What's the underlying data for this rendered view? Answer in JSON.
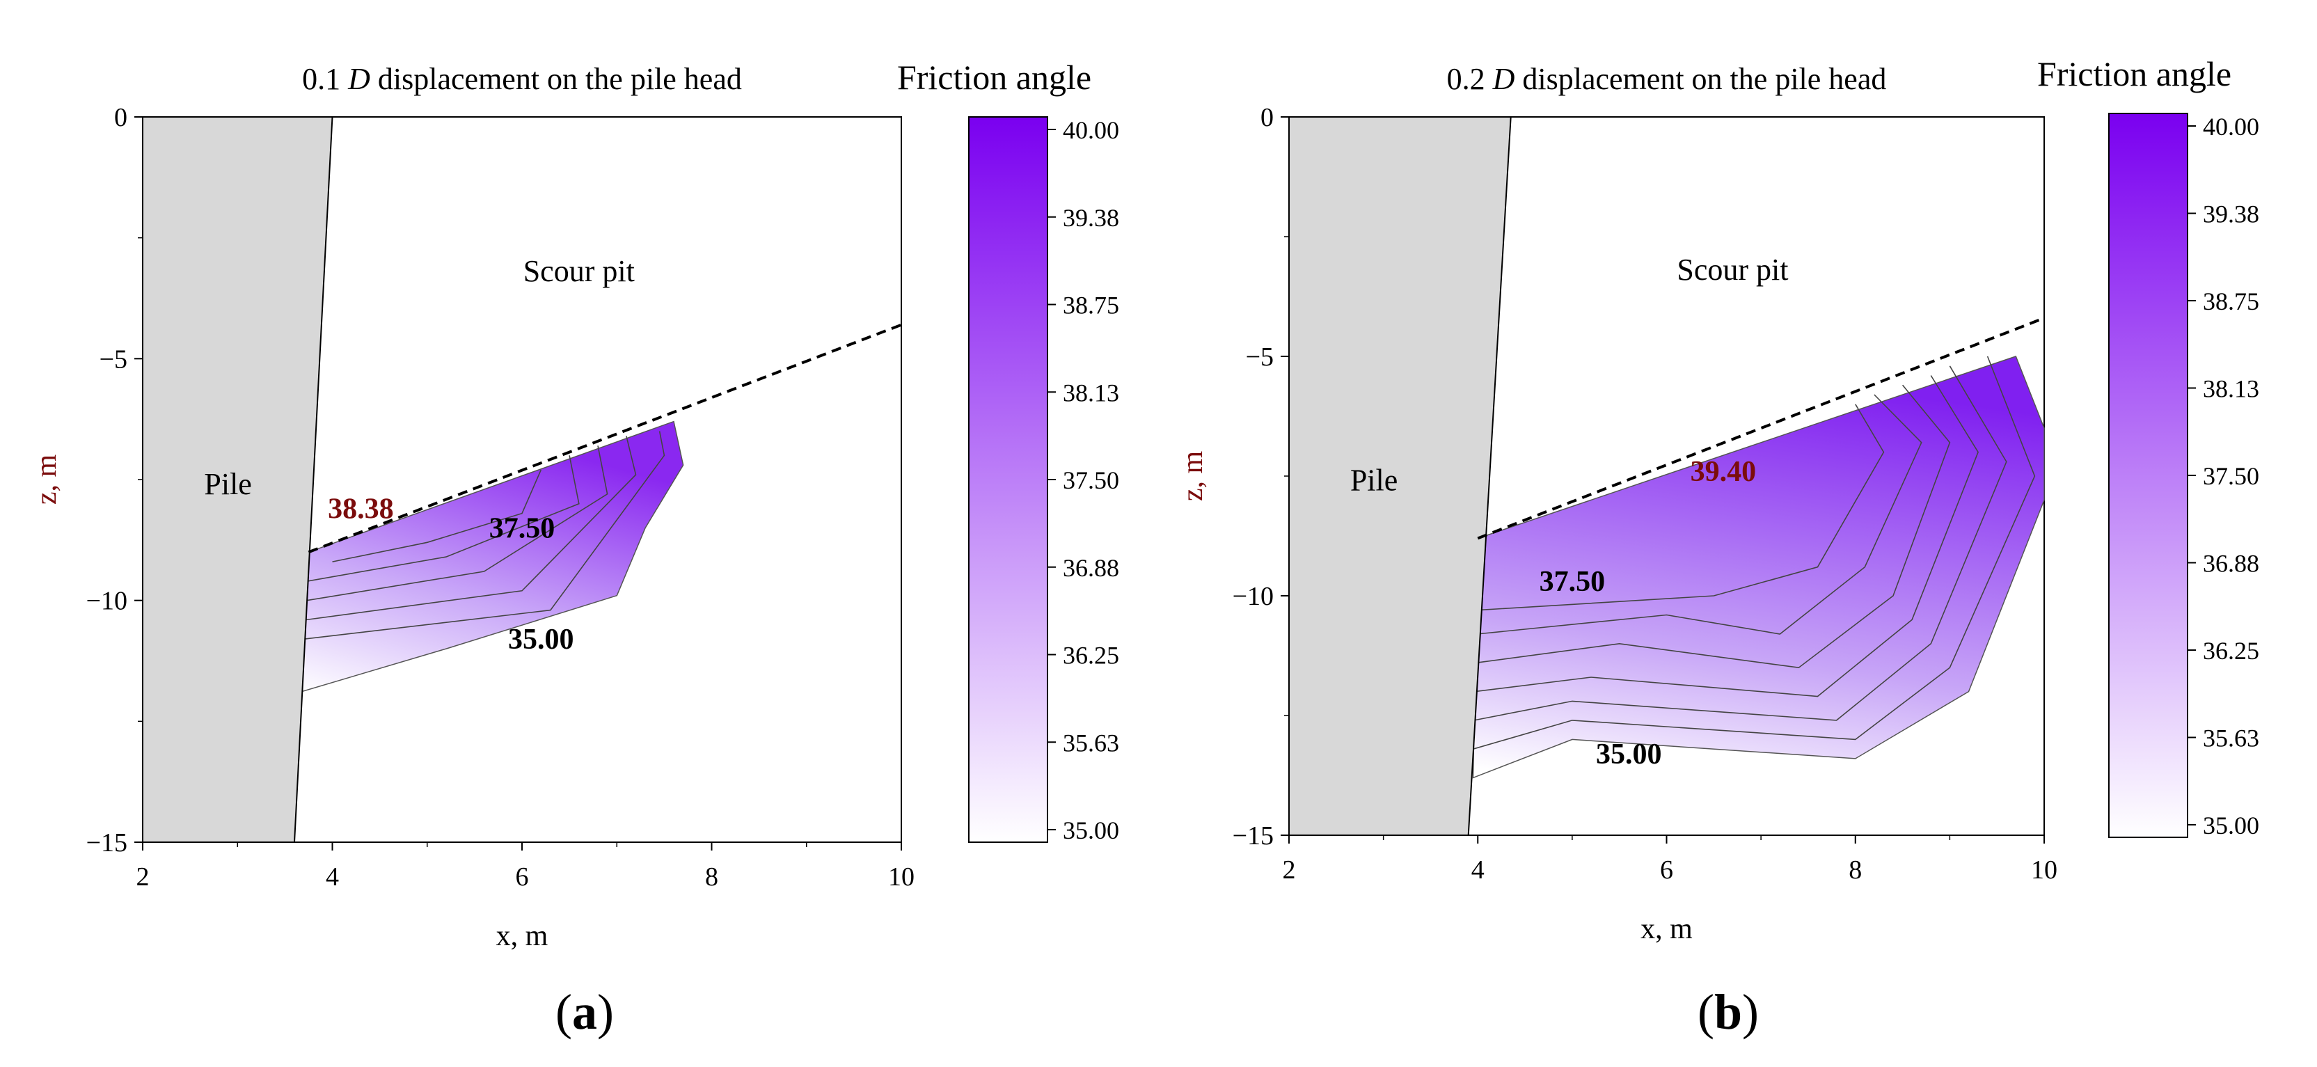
{
  "figure": {
    "colors": {
      "contour_max": "#7a00f0",
      "contour_min": "#ffffff",
      "pile_fill": "#d8d8d8",
      "label_red": "#7b0c0c",
      "axis": "#000000"
    }
  },
  "chart_data": [
    {
      "type": "contour",
      "panel_label": "(a)",
      "title_prefix": "0.1 ",
      "title_italic": "D",
      "title_suffix": " displacement on the pile head",
      "colorbar_title": "Friction angle",
      "xlabel": "x, m",
      "ylabel": "z, m",
      "xlim": [
        2,
        10
      ],
      "ylim": [
        -15,
        0
      ],
      "x_ticks": [
        "2",
        "4",
        "6",
        "8",
        "10"
      ],
      "y_ticks": [
        "0",
        "−5",
        "−10",
        "−15"
      ],
      "colorbar_range": [
        35.0,
        40.0
      ],
      "colorbar_ticks": [
        "40.00",
        "39.38",
        "38.75",
        "38.13",
        "37.50",
        "36.88",
        "36.25",
        "35.63",
        "35.00"
      ],
      "pile_label": "Pile",
      "pit_label": "Scour pit",
      "pile_outline": [
        [
          2,
          0
        ],
        [
          4.0,
          0
        ],
        [
          3.6,
          -15
        ],
        [
          2,
          -15
        ]
      ],
      "pit_line": [
        [
          3.75,
          -9.0
        ],
        [
          10,
          -4.3
        ]
      ],
      "outer_boundary": [
        [
          3.75,
          -9.0
        ],
        [
          7.6,
          -6.3
        ],
        [
          7.7,
          -7.2
        ],
        [
          7.3,
          -8.5
        ],
        [
          7.0,
          -9.9
        ],
        [
          5.2,
          -11.0
        ],
        [
          3.65,
          -11.9
        ]
      ],
      "contour_levels": [
        {
          "level": 35.6,
          "points": [
            [
              3.7,
              -10.8
            ],
            [
              6.3,
              -10.2
            ],
            [
              7.5,
              -7.0
            ],
            [
              7.45,
              -6.5
            ]
          ]
        },
        {
          "level": 36.2,
          "points": [
            [
              3.72,
              -10.4
            ],
            [
              6.0,
              -9.8
            ],
            [
              7.2,
              -7.4
            ],
            [
              7.1,
              -6.6
            ]
          ]
        },
        {
          "level": 36.9,
          "points": [
            [
              3.73,
              -10.0
            ],
            [
              5.6,
              -9.4
            ],
            [
              6.9,
              -7.8
            ],
            [
              6.8,
              -6.8
            ]
          ]
        },
        {
          "level": 37.5,
          "points": [
            [
              3.74,
              -9.6
            ],
            [
              5.2,
              -9.1
            ],
            [
              6.6,
              -8.0
            ],
            [
              6.5,
              -7.0
            ]
          ]
        },
        {
          "level": 38.1,
          "points": [
            [
              4.0,
              -9.2
            ],
            [
              5.0,
              -8.8
            ],
            [
              6.0,
              -8.2
            ],
            [
              6.2,
              -7.3
            ]
          ]
        }
      ],
      "annotations": [
        {
          "text": "38.38",
          "x": 4.3,
          "y": -8.3,
          "color": "red"
        },
        {
          "text": "37.50",
          "x": 6.0,
          "y": -8.7,
          "color": "black"
        },
        {
          "text": "35.00",
          "x": 6.2,
          "y": -11.0,
          "color": "black"
        }
      ]
    },
    {
      "type": "contour",
      "panel_label": "(b)",
      "title_prefix": "0.2 ",
      "title_italic": "D",
      "title_suffix": " displacement on the pile head",
      "colorbar_title": "Friction angle",
      "xlabel": "x, m",
      "ylabel": "z, m",
      "xlim": [
        2,
        10
      ],
      "ylim": [
        -15,
        0
      ],
      "x_ticks": [
        "2",
        "4",
        "6",
        "8",
        "10"
      ],
      "y_ticks": [
        "0",
        "−5",
        "−10",
        "−15"
      ],
      "colorbar_range": [
        35.0,
        40.0
      ],
      "colorbar_ticks": [
        "40.00",
        "39.38",
        "38.75",
        "38.13",
        "37.50",
        "36.88",
        "36.25",
        "35.63",
        "35.00"
      ],
      "pile_label": "Pile",
      "pit_label": "Scour pit",
      "pile_outline": [
        [
          2,
          0
        ],
        [
          4.35,
          0
        ],
        [
          3.9,
          -15
        ],
        [
          2,
          -15
        ]
      ],
      "pit_line": [
        [
          4.0,
          -8.8
        ],
        [
          10,
          -4.2
        ]
      ],
      "outer_boundary": [
        [
          4.0,
          -8.8
        ],
        [
          9.7,
          -5.0
        ],
        [
          10.0,
          -6.5
        ],
        [
          10.0,
          -8.0
        ],
        [
          9.2,
          -12.0
        ],
        [
          8.0,
          -13.4
        ],
        [
          5.0,
          -13.0
        ],
        [
          3.95,
          -13.8
        ]
      ],
      "contour_levels": [
        {
          "level": 35.6,
          "points": [
            [
              3.95,
              -13.2
            ],
            [
              5.0,
              -12.6
            ],
            [
              8.0,
              -13.0
            ],
            [
              9.0,
              -11.5
            ],
            [
              9.9,
              -7.5
            ],
            [
              9.4,
              -5.0
            ]
          ]
        },
        {
          "level": 36.2,
          "points": [
            [
              3.96,
              -12.6
            ],
            [
              5.0,
              -12.2
            ],
            [
              7.8,
              -12.6
            ],
            [
              8.8,
              -11.0
            ],
            [
              9.6,
              -7.2
            ],
            [
              9.0,
              -5.2
            ]
          ]
        },
        {
          "level": 36.9,
          "points": [
            [
              3.97,
              -12.0
            ],
            [
              5.2,
              -11.7
            ],
            [
              7.6,
              -12.1
            ],
            [
              8.6,
              -10.5
            ],
            [
              9.3,
              -7.0
            ],
            [
              8.8,
              -5.4
            ]
          ]
        },
        {
          "level": 37.5,
          "points": [
            [
              3.98,
              -11.4
            ],
            [
              5.5,
              -11.0
            ],
            [
              7.4,
              -11.5
            ],
            [
              8.4,
              -10.0
            ],
            [
              9.0,
              -6.8
            ],
            [
              8.5,
              -5.6
            ]
          ]
        },
        {
          "level": 38.1,
          "points": [
            [
              3.99,
              -10.8
            ],
            [
              6.0,
              -10.4
            ],
            [
              7.2,
              -10.8
            ],
            [
              8.1,
              -9.4
            ],
            [
              8.7,
              -6.8
            ],
            [
              8.2,
              -5.8
            ]
          ]
        },
        {
          "level": 38.8,
          "points": [
            [
              4.0,
              -10.3
            ],
            [
              6.5,
              -10.0
            ],
            [
              7.6,
              -9.4
            ],
            [
              8.3,
              -7.0
            ],
            [
              8.0,
              -6.0
            ]
          ]
        }
      ],
      "annotations": [
        {
          "text": "39.40",
          "x": 6.6,
          "y": -7.6,
          "color": "red"
        },
        {
          "text": "37.50",
          "x": 5.0,
          "y": -9.9,
          "color": "black"
        },
        {
          "text": "35.00",
          "x": 5.6,
          "y": -13.5,
          "color": "black"
        }
      ]
    }
  ]
}
